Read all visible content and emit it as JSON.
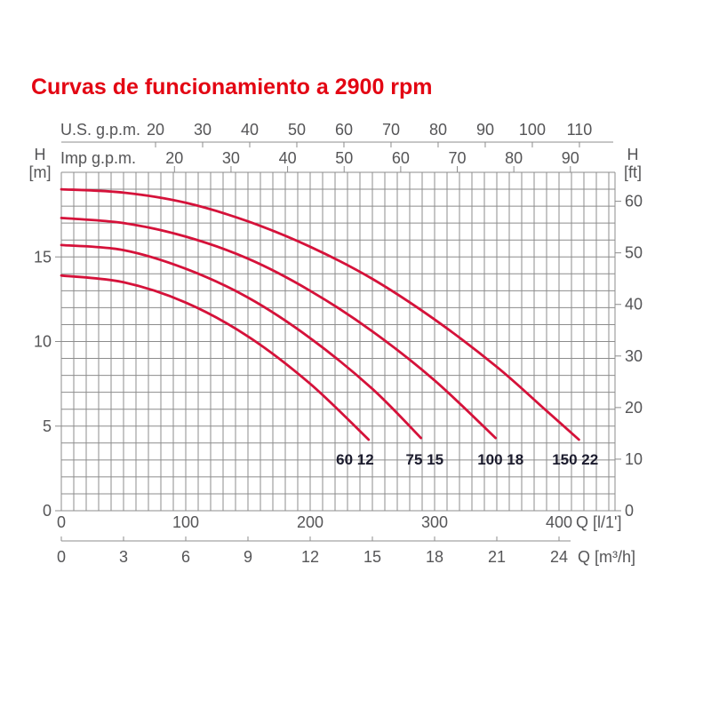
{
  "title": "Curvas de funcionamiento a 2900 rpm",
  "colors": {
    "title": "#e30613",
    "curve": "#d5123a",
    "grid": "#8c8c8c",
    "axis_text": "#555557",
    "curve_label": "#1c1c2e"
  },
  "chart_data": {
    "type": "line",
    "title": "Curvas de funcionamiento a 2900 rpm",
    "x_axis": {
      "bottom_primary": {
        "label": "Q [l/1']",
        "ticks": [
          0,
          100,
          200,
          300,
          400
        ],
        "range_l_per_min": [
          0,
          445
        ]
      },
      "bottom_secondary": {
        "label": "Q [m³/h]",
        "ticks": [
          0,
          3,
          6,
          9,
          12,
          15,
          18,
          21,
          24
        ]
      },
      "top_primary": {
        "label": "U.S. g.p.m.",
        "ticks": [
          20,
          30,
          40,
          50,
          60,
          70,
          80,
          90,
          100,
          110
        ]
      },
      "top_secondary": {
        "label": "Imp g.p.m.",
        "ticks": [
          20,
          30,
          40,
          50,
          60,
          70,
          80,
          90
        ]
      }
    },
    "y_axis": {
      "left": {
        "label_line1": "H",
        "label_line2": "[m]",
        "ticks": [
          0,
          5,
          10,
          15
        ],
        "range_m": [
          0,
          20
        ]
      },
      "right": {
        "label_line1": "H",
        "label_line2": "[ft]",
        "ticks": [
          0,
          10,
          20,
          30,
          40,
          50,
          60
        ]
      }
    },
    "grid": {
      "x_step_l_per_min": 10,
      "y_step_m": 1,
      "grid_on": true
    },
    "legend_position": "labels-under-curve-ends",
    "series": [
      {
        "name": "60 12",
        "label_at_q_lmin": 236,
        "points_q_lmin_h_m": [
          [
            0,
            13.9
          ],
          [
            50,
            13.5
          ],
          [
            100,
            12.3
          ],
          [
            150,
            10.3
          ],
          [
            200,
            7.5
          ],
          [
            247,
            4.2
          ]
        ]
      },
      {
        "name": "75 15",
        "label_at_q_lmin": 292,
        "points_q_lmin_h_m": [
          [
            0,
            15.7
          ],
          [
            50,
            15.4
          ],
          [
            100,
            14.3
          ],
          [
            150,
            12.6
          ],
          [
            200,
            10.2
          ],
          [
            250,
            7.2
          ],
          [
            289,
            4.3
          ]
        ]
      },
      {
        "name": "100 18",
        "label_at_q_lmin": 353,
        "points_q_lmin_h_m": [
          [
            0,
            17.3
          ],
          [
            50,
            17.0
          ],
          [
            100,
            16.2
          ],
          [
            150,
            14.9
          ],
          [
            200,
            13.0
          ],
          [
            250,
            10.6
          ],
          [
            300,
            7.7
          ],
          [
            349,
            4.3
          ]
        ]
      },
      {
        "name": "150 22",
        "label_at_q_lmin": 413,
        "points_q_lmin_h_m": [
          [
            0,
            19.0
          ],
          [
            50,
            18.8
          ],
          [
            100,
            18.2
          ],
          [
            150,
            17.1
          ],
          [
            200,
            15.6
          ],
          [
            250,
            13.7
          ],
          [
            300,
            11.3
          ],
          [
            350,
            8.5
          ],
          [
            390,
            5.9
          ],
          [
            416,
            4.2
          ]
        ]
      }
    ]
  }
}
